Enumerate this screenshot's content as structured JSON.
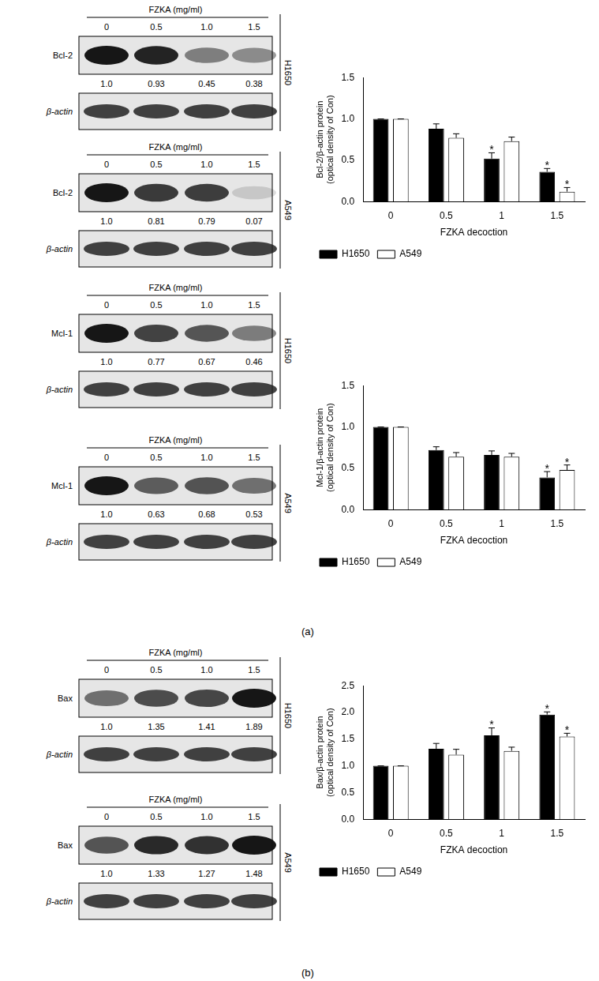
{
  "panel_labels": [
    "(a)",
    "(b)"
  ],
  "blots": [
    {
      "treatment": "FZKA (mg/ml)",
      "doses": [
        "0",
        "0.5",
        "1.0",
        "1.5"
      ],
      "protein": "Bcl-2",
      "cell_line": "H1650",
      "ratios": [
        "1.0",
        "0.93",
        "0.45",
        "0.38"
      ],
      "loading": "β-actin"
    },
    {
      "treatment": "FZKA (mg/ml)",
      "doses": [
        "0",
        "0.5",
        "1.0",
        "1.5"
      ],
      "protein": "Bcl-2",
      "cell_line": "A549",
      "ratios": [
        "1.0",
        "0.81",
        "0.79",
        "0.07"
      ],
      "loading": "β-actin"
    },
    {
      "treatment": "FZKA (mg/ml)",
      "doses": [
        "0",
        "0.5",
        "1.0",
        "1.5"
      ],
      "protein": "Mcl-1",
      "cell_line": "H1650",
      "ratios": [
        "1.0",
        "0.77",
        "0.67",
        "0.46"
      ],
      "loading": "β-actin"
    },
    {
      "treatment": "FZKA (mg/ml)",
      "doses": [
        "0",
        "0.5",
        "1.0",
        "1.5"
      ],
      "protein": "Mcl-1",
      "cell_line": "A549",
      "ratios": [
        "1.0",
        "0.63",
        "0.68",
        "0.53"
      ],
      "loading": "β-actin"
    },
    {
      "treatment": "FZKA (mg/ml)",
      "doses": [
        "0",
        "0.5",
        "1.0",
        "1.5"
      ],
      "protein": "Bax",
      "cell_line": "H1650",
      "ratios": [
        "1.0",
        "1.35",
        "1.41",
        "1.89"
      ],
      "loading": "β-actin"
    },
    {
      "treatment": "FZKA (mg/ml)",
      "doses": [
        "0",
        "0.5",
        "1.0",
        "1.5"
      ],
      "protein": "Bax",
      "cell_line": "A549",
      "ratios": [
        "1.0",
        "1.33",
        "1.27",
        "1.48"
      ],
      "loading": "β-actin"
    }
  ],
  "chart_data": [
    {
      "type": "bar",
      "x_label": "FZKA decoction",
      "y_label": [
        "Bcl-2/β-actin protein",
        "(optical density of Con)"
      ],
      "categories": [
        "0",
        "0.5",
        "1",
        "1.5"
      ],
      "series": [
        {
          "name": "H1650",
          "color": "#000000",
          "values": [
            1.0,
            0.88,
            0.52,
            0.36
          ],
          "errors": [
            0,
            0.06,
            0.07,
            0.04
          ],
          "significance": [
            null,
            null,
            "*",
            "*"
          ]
        },
        {
          "name": "A549",
          "color": "#ffffff",
          "values": [
            1.0,
            0.77,
            0.73,
            0.12
          ],
          "errors": [
            0,
            0.05,
            0.05,
            0.05
          ],
          "significance": [
            null,
            null,
            null,
            "*"
          ]
        }
      ],
      "ylim": [
        0,
        1.5
      ],
      "yticks": [
        {
          "value": 0,
          "label": "0.0"
        },
        0.5,
        {
          "value": 1,
          "label": "1.0"
        },
        1.5
      ],
      "grid": false,
      "legend": "bottom"
    },
    {
      "type": "bar",
      "x_label": "FZKA decoction",
      "y_label": [
        "Mcl-1/β-actin protein",
        "(optical density of Con)"
      ],
      "categories": [
        "0",
        "0.5",
        "1",
        "1.5"
      ],
      "series": [
        {
          "name": "H1650",
          "color": "#000000",
          "values": [
            1.0,
            0.72,
            0.66,
            0.39
          ],
          "errors": [
            0,
            0.04,
            0.05,
            0.07
          ],
          "significance": [
            null,
            null,
            null,
            "*"
          ]
        },
        {
          "name": "A549",
          "color": "#ffffff",
          "values": [
            1.0,
            0.64,
            0.64,
            0.48
          ],
          "errors": [
            0,
            0.05,
            0.04,
            0.06
          ],
          "significance": [
            null,
            null,
            null,
            "*"
          ]
        }
      ],
      "ylim": [
        0,
        1.5
      ],
      "yticks": [
        {
          "value": 0,
          "label": "0.0"
        },
        0.5,
        {
          "value": 1,
          "label": "1.0"
        },
        1.5
      ],
      "grid": false,
      "legend": "bottom"
    },
    {
      "type": "bar",
      "x_label": "FZKA decoction",
      "y_label": [
        "Bax/β-actin protein",
        "(optical density of Con)"
      ],
      "categories": [
        "0",
        "0.5",
        "1",
        "1.5"
      ],
      "series": [
        {
          "name": "H1650",
          "color": "#000000",
          "values": [
            1.0,
            1.32,
            1.57,
            1.96
          ],
          "errors": [
            0,
            0.1,
            0.14,
            0.05
          ],
          "significance": [
            null,
            null,
            "*",
            "*"
          ]
        },
        {
          "name": "A549",
          "color": "#ffffff",
          "values": [
            1.0,
            1.21,
            1.28,
            1.55
          ],
          "errors": [
            0,
            0.1,
            0.07,
            0.06
          ],
          "significance": [
            null,
            null,
            null,
            "*"
          ]
        }
      ],
      "ylim": [
        0,
        2.5
      ],
      "yticks": [
        {
          "value": 0,
          "label": "0.0"
        },
        0.5,
        {
          "value": 1,
          "label": "1.0"
        },
        1.5,
        {
          "value": 2,
          "label": "2.0"
        },
        2.5
      ],
      "grid": false,
      "legend": "bottom"
    }
  ]
}
